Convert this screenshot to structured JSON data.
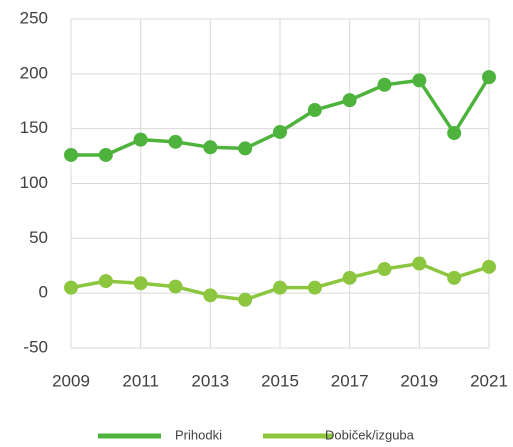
{
  "chart_data": {
    "type": "line",
    "x": [
      2009,
      2010,
      2011,
      2012,
      2013,
      2014,
      2015,
      2016,
      2017,
      2018,
      2019,
      2020,
      2021
    ],
    "series": [
      {
        "name": "Prihodki",
        "color": "#4db33d",
        "values": [
          126,
          126,
          140,
          138,
          133,
          132,
          147,
          167,
          176,
          190,
          194,
          146,
          197
        ]
      },
      {
        "name": "Dobiček/izguba",
        "color": "#8cc63f",
        "values": [
          5,
          11,
          9,
          6,
          -2,
          -6,
          5,
          5,
          14,
          22,
          27,
          14,
          24
        ]
      }
    ],
    "xlim": [
      2009,
      2021
    ],
    "xticks": [
      2009,
      2011,
      2013,
      2015,
      2017,
      2019,
      2021
    ],
    "ylim": [
      -50,
      250
    ],
    "yticks": [
      -50,
      0,
      50,
      100,
      150,
      200,
      250
    ],
    "grid": true,
    "legend": "bottom"
  }
}
